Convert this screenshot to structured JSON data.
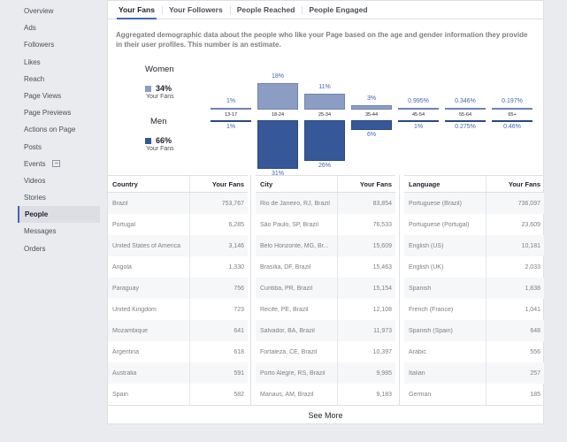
{
  "sidebar": {
    "items": [
      {
        "label": "Overview"
      },
      {
        "label": "Ads"
      },
      {
        "label": "Followers"
      },
      {
        "label": "Likes"
      },
      {
        "label": "Reach"
      },
      {
        "label": "Page Views"
      },
      {
        "label": "Page Previews"
      },
      {
        "label": "Actions on Page"
      },
      {
        "label": "Posts"
      },
      {
        "label": "Events"
      },
      {
        "label": "Videos"
      },
      {
        "label": "Stories"
      },
      {
        "label": "People"
      },
      {
        "label": "Messages"
      },
      {
        "label": "Orders"
      }
    ],
    "active": "People"
  },
  "tabs": [
    {
      "label": "Your Fans"
    },
    {
      "label": "Your Followers"
    },
    {
      "label": "People Reached"
    },
    {
      "label": "People Engaged"
    }
  ],
  "description": "Aggregated demographic data about the people who like your Page based on the age and gender information they provide in their user profiles. This number is an estimate.",
  "gender": {
    "women": {
      "label": "Women",
      "pct": "34%",
      "sub": "Your Fans"
    },
    "men": {
      "label": "Men",
      "pct": "66%",
      "sub": "Your Fans"
    }
  },
  "colors": {
    "women": "#8b9dc3",
    "men": "#365899",
    "accent": "#4267b2"
  },
  "chart_data": {
    "type": "bar",
    "categories": [
      "13-17",
      "18-24",
      "25-34",
      "35-44",
      "45-54",
      "55-64",
      "65+"
    ],
    "series": [
      {
        "name": "Women",
        "values": [
          1,
          18,
          11,
          3,
          0.995,
          0.346,
          0.197
        ],
        "labels": [
          "1%",
          "18%",
          "11%",
          "3%",
          "0.995%",
          "0.346%",
          "0.197%"
        ]
      },
      {
        "name": "Men",
        "values": [
          1,
          31,
          26,
          6,
          1,
          0.275,
          0.46
        ],
        "labels": [
          "1%",
          "31%",
          "26%",
          "6%",
          "1%",
          "0.275%",
          "0.46%"
        ]
      }
    ]
  },
  "tables": {
    "country": {
      "headers": [
        "Country",
        "Your Fans"
      ],
      "rows": [
        [
          "Brazil",
          "753,767"
        ],
        [
          "Portugal",
          "6,285"
        ],
        [
          "United States of America",
          "3,146"
        ],
        [
          "Angola",
          "1,330"
        ],
        [
          "Paraguay",
          "756"
        ],
        [
          "United Kingdom",
          "723"
        ],
        [
          "Mozambique",
          "641"
        ],
        [
          "Argentina",
          "618"
        ],
        [
          "Australia",
          "591"
        ],
        [
          "Spain",
          "582"
        ]
      ]
    },
    "city": {
      "headers": [
        "City",
        "Your Fans"
      ],
      "rows": [
        [
          "Rio de Janeiro, RJ, Brazil",
          "83,854"
        ],
        [
          "São Paulo, SP, Brazil",
          "76,533"
        ],
        [
          "Belo Horizonte, MG, Br...",
          "15,609"
        ],
        [
          "Brasília, DF, Brazil",
          "15,463"
        ],
        [
          "Curitiba, PR, Brazil",
          "15,154"
        ],
        [
          "Recife, PE, Brazil",
          "12,108"
        ],
        [
          "Salvador, BA, Brazil",
          "11,973"
        ],
        [
          "Fortaleza, CE, Brazil",
          "10,397"
        ],
        [
          "Porto Alegre, RS, Brazil",
          "9,985"
        ],
        [
          "Manaus, AM, Brazil",
          "9,183"
        ]
      ]
    },
    "language": {
      "headers": [
        "Language",
        "Your Fans"
      ],
      "rows": [
        [
          "Portuguese (Brazil)",
          "736,097"
        ],
        [
          "Portuguese (Portugal)",
          "23,609"
        ],
        [
          "English (US)",
          "10,181"
        ],
        [
          "English (UK)",
          "2,033"
        ],
        [
          "Spanish",
          "1,838"
        ],
        [
          "French (France)",
          "1,041"
        ],
        [
          "Spanish (Spain)",
          "648"
        ],
        [
          "Arabic",
          "556"
        ],
        [
          "Italian",
          "257"
        ],
        [
          "German",
          "185"
        ]
      ]
    }
  },
  "see_more": "See More"
}
